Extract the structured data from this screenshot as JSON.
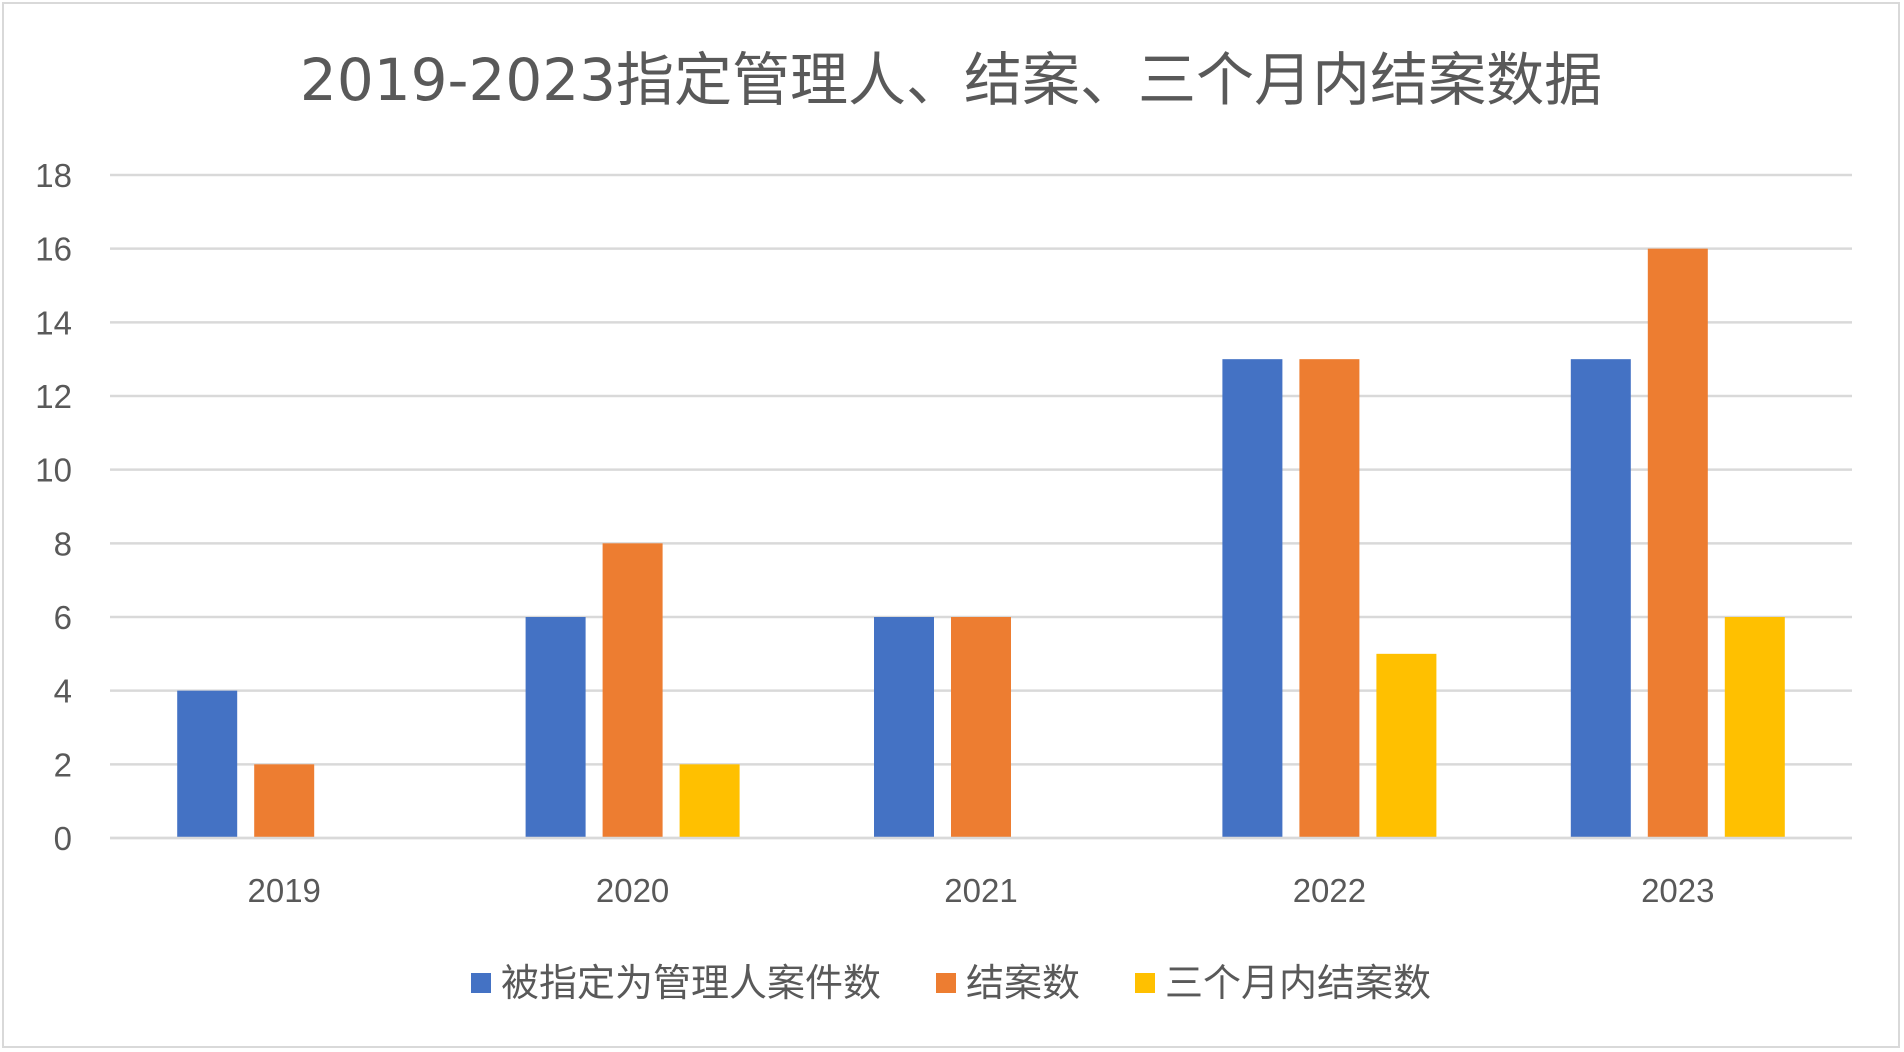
{
  "chart_data": {
    "type": "bar",
    "title": "2019-2023指定管理人、结案、三个月内结案数据",
    "xlabel": "",
    "ylabel": "",
    "categories": [
      "2019",
      "2020",
      "2021",
      "2022",
      "2023"
    ],
    "series": [
      {
        "name": "被指定为管理人案件数",
        "values": [
          4,
          6,
          6,
          13,
          13
        ],
        "color": "#4472C4"
      },
      {
        "name": "结案数",
        "values": [
          2,
          8,
          6,
          13,
          16
        ],
        "color": "#ED7D31"
      },
      {
        "name": "三个月内结案数",
        "values": [
          0,
          2,
          0,
          5,
          6
        ],
        "color": "#FFC000"
      }
    ],
    "ylim": [
      0,
      18
    ],
    "y_ticks": [
      0,
      2,
      4,
      6,
      8,
      10,
      12,
      14,
      16,
      18
    ],
    "grid": true,
    "legend_position": "bottom"
  }
}
